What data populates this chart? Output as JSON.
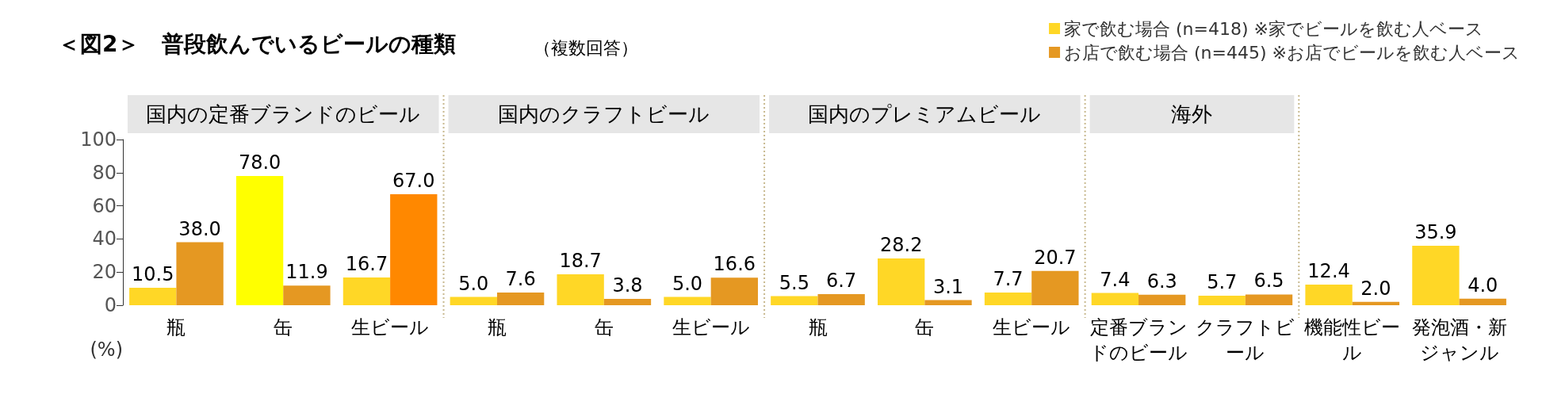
{
  "chart_data": {
    "type": "bar",
    "title": "＜図2＞　普段飲んでいるビールの種類",
    "subtitle": "（複数回答）",
    "ylabel": "(%)",
    "categories": [
      "瓶",
      "缶",
      "生ビール",
      "瓶",
      "缶",
      "生ビール",
      "瓶",
      "缶",
      "生ビール",
      "定番ブランドのビール",
      "クラフトビール",
      "機能性ビール",
      "発泡酒・新ジャンル"
    ],
    "series": [
      {
        "name": "家で飲む場合 (n=418) ※家でビールを飲む人ベース",
        "color": "#ffd726",
        "colors": [
          "#ffd726",
          "#ffff00",
          "#ffd726",
          "#ffd726",
          "#ffd726",
          "#ffd726",
          "#ffd726",
          "#ffd726",
          "#ffd726",
          "#ffd726",
          "#ffd726",
          "#ffd726",
          "#ffd726"
        ],
        "values": [
          10.5,
          78.0,
          16.7,
          5.0,
          18.7,
          5.0,
          5.5,
          28.2,
          7.7,
          7.4,
          5.7,
          12.4,
          35.9
        ],
        "value_labels": [
          "10.5",
          "78.0",
          "16.7",
          "5.0",
          "18.7",
          "5.0",
          "5.5",
          "28.2",
          "7.7",
          "7.4",
          "5.7",
          "12.4",
          "35.9"
        ]
      },
      {
        "name": "お店で飲む場合 (n=445) ※お店でビールを飲む人ベース",
        "color": "#e59822",
        "colors": [
          "#e59822",
          "#e59822",
          "#ff8800",
          "#e59822",
          "#e59822",
          "#e59822",
          "#e59822",
          "#e59822",
          "#e59822",
          "#e59822",
          "#e59822",
          "#e59822",
          "#e59822"
        ],
        "values": [
          38.0,
          11.9,
          67.0,
          7.6,
          3.8,
          16.6,
          6.7,
          3.1,
          20.7,
          6.3,
          6.5,
          2.0,
          4.0
        ],
        "value_labels": [
          "38.0",
          "11.9",
          "67.0",
          "7.6",
          "3.8",
          "16.6",
          "6.7",
          "3.1",
          "20.7",
          "6.3",
          "6.5",
          "2.0",
          "4.0"
        ]
      }
    ],
    "annotations": [
      "国内の定番ブランドのビール",
      "国内のクラフトビール",
      "国内のプレミアムビール",
      "海外"
    ],
    "ylim": [
      0,
      100
    ],
    "yticks": [
      0,
      20,
      40,
      60,
      80,
      100
    ],
    "grid": false,
    "legend": "top right"
  }
}
